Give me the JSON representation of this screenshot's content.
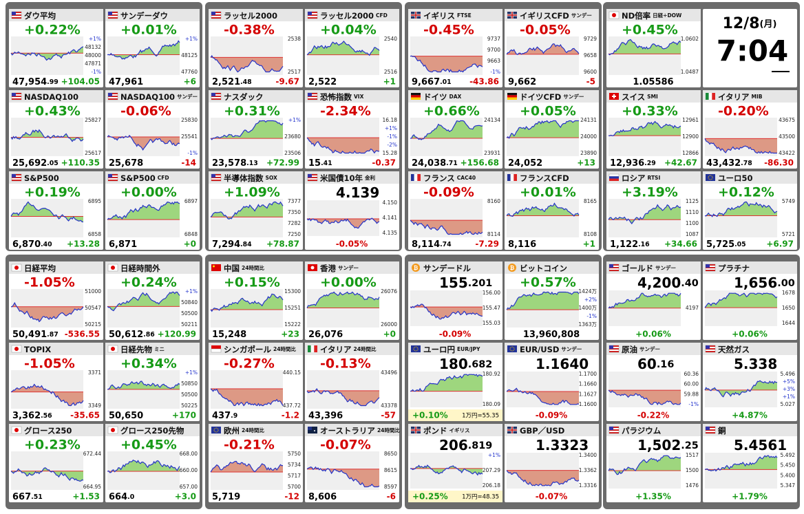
{
  "groups": [
    {
      "tiles": [
        {
          "name": "ダウ平均",
          "flag": "us",
          "style": "a",
          "pct": "+0.22%",
          "price": "47,954",
          "price_dec": ".99",
          "chg": "+104.05",
          "axis": [
            "+1%",
            "48132",
            "48000",
            "47871",
            "-1%"
          ]
        },
        {
          "name": "サンデーダウ",
          "flag": "us",
          "style": "a",
          "pct": "+0.01%",
          "price": "47,961",
          "chg": "+6",
          "axis": [
            "+1%",
            "48125",
            "47760"
          ]
        },
        {
          "name": "NASDAQ100",
          "flag": "us",
          "style": "a",
          "pct": "+0.43%",
          "price": "25,692",
          "price_dec": ".05",
          "chg": "+110.35",
          "axis": [
            "25827",
            "25617"
          ]
        },
        {
          "name": "NASDAQ100",
          "tag": "サンデー",
          "flag": "us",
          "style": "a",
          "pct": "-0.06%",
          "price": "25,678",
          "chg": "-14",
          "axis": [
            "25830",
            "25541",
            "-1%"
          ]
        },
        {
          "name": "S&P500",
          "flag": "us",
          "style": "a",
          "pct": "+0.19%",
          "price": "6,870",
          "price_dec": ".40",
          "chg": "+13.28",
          "axis": [
            "6895",
            "6858"
          ]
        },
        {
          "name": "S&P500",
          "tag": "CFD",
          "flag": "us",
          "style": "a",
          "pct": "+0.00%",
          "price": "6,871",
          "chg": "+0",
          "axis": [
            "6897",
            "6848"
          ]
        }
      ]
    },
    {
      "tiles": [
        {
          "name": "ラッセル2000",
          "flag": "us",
          "style": "a",
          "pct": "-0.38%",
          "price": "2,521",
          "price_dec": ".48",
          "chg": "-9.67",
          "axis": [
            "2538",
            "2517"
          ]
        },
        {
          "name": "ラッセル2000",
          "tag": "CFD",
          "flag": "us",
          "style": "a",
          "pct": "+0.04%",
          "price": "2,522",
          "chg": "+1",
          "axis": [
            "2540",
            "2516"
          ]
        },
        {
          "name": "ナスダック",
          "flag": "us",
          "style": "a",
          "pct": "+0.31%",
          "price": "23,578",
          "price_dec": ".13",
          "chg": "+72.99",
          "axis": [
            "+1%",
            "23680",
            "23506"
          ]
        },
        {
          "name": "恐怖指数",
          "tag": "VIX",
          "flag": "us",
          "style": "a",
          "pct": "-2.34%",
          "price": "15",
          "price_dec": ".41",
          "chg": "-0.37",
          "axis": [
            "16.18",
            "+1%",
            "-1%",
            "-2%",
            "15.28"
          ]
        },
        {
          "name": "半導体指数",
          "tag": "SOX",
          "flag": "us",
          "style": "a",
          "pct": "+1.09%",
          "price": "7,294",
          "price_dec": ".84",
          "chg": "+78.87",
          "axis": [
            "7377",
            "7350",
            "7282",
            "7250"
          ]
        },
        {
          "name": "米国債10年",
          "tag": "金利",
          "flag": "us",
          "style": "b",
          "price": "4.139",
          "pct": "-0.05%",
          "axis": [
            "4.150",
            "4.141",
            "4.135"
          ]
        }
      ]
    },
    {
      "tiles": [
        {
          "name": "イギリス",
          "tag": "FTSE",
          "flag": "gb",
          "style": "a",
          "pct": "-0.45%",
          "price": "9,667",
          "price_dec": ".01",
          "chg": "-43.86",
          "axis": [
            "9737",
            "9700",
            "9663",
            "-1%"
          ]
        },
        {
          "name": "イギリスCFD",
          "tag": "サンデー",
          "flag": "gb",
          "style": "a",
          "pct": "-0.05%",
          "price": "9,662",
          "chg": "-5",
          "axis": [
            "9729",
            "9658",
            "9600"
          ]
        },
        {
          "name": "ドイツ",
          "tag": "DAX",
          "flag": "de",
          "style": "a",
          "pct": "+0.66%",
          "price": "24,038",
          "price_dec": ".71",
          "chg": "+156.68",
          "axis": [
            "24134",
            "23931"
          ]
        },
        {
          "name": "ドイツCFD",
          "tag": "サンデー",
          "flag": "de",
          "style": "a",
          "pct": "+0.05%",
          "price": "24,052",
          "chg": "+13",
          "axis": [
            "24131",
            "24000",
            "23890"
          ]
        },
        {
          "name": "フランス",
          "tag": "CAC40",
          "flag": "fr",
          "style": "a",
          "pct": "-0.09%",
          "price": "8,114",
          "price_dec": ".74",
          "chg": "-7.29",
          "axis": [
            "8160",
            "8114"
          ]
        },
        {
          "name": "フランスCFD",
          "flag": "fr",
          "style": "a",
          "pct": "+0.01%",
          "price": "8,116",
          "chg": "+1",
          "axis": [
            "8165",
            "8108"
          ]
        }
      ]
    },
    {
      "tiles": [
        {
          "name": "ND倍率",
          "tag": "日経÷DOW",
          "flag": "jp",
          "style": "a",
          "pct": "+0.45%",
          "price": "1.05586",
          "axis": [
            "1.0602",
            "1.0487"
          ]
        },
        {
          "date": "12/8",
          "weekday": "(月)",
          "time": "7:04"
        },
        {
          "name": "スイス",
          "tag": "SMI",
          "flag": "ch",
          "style": "a",
          "pct": "+0.33%",
          "price": "12,936",
          "price_dec": ".29",
          "chg": "+42.67",
          "axis": [
            "12961",
            "12900",
            "12866"
          ]
        },
        {
          "name": "イタリア",
          "tag": "MIB",
          "flag": "it",
          "style": "a",
          "pct": "-0.20%",
          "price": "43,432",
          "price_dec": ".78",
          "chg": "-86.30",
          "axis": [
            "43675",
            "43500",
            "43422"
          ]
        },
        {
          "name": "ロシア",
          "tag": "RTSI",
          "flag": "ru",
          "style": "a",
          "pct": "+3.19%",
          "price": "1,122",
          "price_dec": ".16",
          "chg": "+34.66",
          "axis": [
            "1125",
            "1110",
            "1100",
            "1087"
          ]
        },
        {
          "name": "ユーロ50",
          "flag": "eu",
          "style": "a",
          "pct": "+0.12%",
          "price": "5,725",
          "price_dec": ".05",
          "chg": "+6.97",
          "axis": [
            "5749",
            "5721"
          ]
        }
      ]
    },
    {
      "tiles": [
        {
          "name": "日経平均",
          "flag": "jp",
          "style": "a",
          "pct": "-1.05%",
          "price": "50,491",
          "price_dec": ".87",
          "chg": "-536.55",
          "axis": [
            "51000",
            "50547",
            "50215"
          ]
        },
        {
          "name": "日経時間外",
          "flag": "jp",
          "style": "a",
          "pct": "+0.24%",
          "price": "50,612",
          "price_dec": ".86",
          "chg": "+120.99",
          "axis": [
            "+1%",
            "50840",
            "50500",
            "50211"
          ]
        },
        {
          "name": "TOPIX",
          "flag": "jp",
          "style": "a",
          "pct": "-1.05%",
          "price": "3,362",
          "price_dec": ".56",
          "chg": "-35.65",
          "axis": [
            "3371",
            "3349"
          ]
        },
        {
          "name": "日経先物",
          "tag": "ミニ",
          "flag": "jp",
          "style": "a",
          "pct": "+0.34%",
          "price": "50,650",
          "chg": "+170",
          "axis": [
            "+1%",
            "50850",
            "50500",
            "50225"
          ]
        },
        {
          "name": "グロース250",
          "flag": "jp",
          "style": "a",
          "pct": "+0.23%",
          "price": "667",
          "price_dec": ".51",
          "chg": "+1.53",
          "axis": [
            "672.44",
            "664.95"
          ]
        },
        {
          "name": "グロース250先物",
          "flag": "jp",
          "style": "a",
          "pct": "+0.45%",
          "price": "664",
          "price_dec": ".0",
          "chg": "+3.0",
          "axis": [
            "668.00",
            "660.00",
            "657.00"
          ]
        }
      ]
    },
    {
      "tiles": [
        {
          "name": "中国",
          "tag": "24時間比",
          "flag": "cn",
          "style": "a",
          "pct": "+0.15%",
          "price": "15,248",
          "chg": "+23",
          "axis": [
            "15300",
            "15251",
            "15222"
          ]
        },
        {
          "name": "香港",
          "tag": "サンデー",
          "flag": "hk",
          "style": "a",
          "pct": "+0.00%",
          "price": "26,076",
          "chg": "+0",
          "axis": [
            "26076",
            "26000"
          ]
        },
        {
          "name": "シンガポール",
          "tag": "24時間比",
          "flag": "sg",
          "style": "a",
          "pct": "-0.27%",
          "price": "437",
          "price_dec": ".9",
          "chg": "-1.2",
          "axis": [
            "440.15",
            "437.72"
          ]
        },
        {
          "name": "イタリア",
          "tag": "24時間比",
          "flag": "it",
          "style": "a",
          "pct": "-0.13%",
          "price": "43,396",
          "chg": "-57",
          "axis": [
            "43496",
            "43378"
          ]
        },
        {
          "name": "欧州",
          "tag": "24時間比",
          "flag": "eu",
          "style": "a",
          "pct": "-0.21%",
          "price": "5,719",
          "chg": "-12",
          "axis": [
            "5750",
            "5734",
            "5717",
            "5700"
          ]
        },
        {
          "name": "オーストラリア",
          "tag": "24時間比",
          "flag": "au",
          "style": "a",
          "pct": "-0.07%",
          "price": "8,606",
          "chg": "-6",
          "axis": [
            "8650",
            "8615",
            "8597"
          ]
        }
      ]
    },
    {
      "tiles": [
        {
          "name": "サンデードル",
          "flag": "coin",
          "style": "b",
          "price": "155",
          "price_dec": ".201",
          "pct": "-0.09%",
          "axis": [
            "156.00",
            "155.47",
            "155.03"
          ]
        },
        {
          "name": "ビットコイン",
          "flag": "coin",
          "style": "a",
          "pct": "+0.57%",
          "price": "13,960,808",
          "axis": [
            "1424万",
            "+2%",
            "1400万",
            "-1%",
            "1363万"
          ]
        },
        {
          "name": "ユーロ円",
          "tag": "EUR/JPY",
          "flag": "eu",
          "style": "b",
          "price": "180",
          "price_dec": ".682",
          "pct": "+0.10%",
          "note": "1万円=55.35",
          "axis": [
            "180.92",
            "180.09"
          ]
        },
        {
          "name": "EUR/USD",
          "tag": "サンデー",
          "flag": "eu",
          "style": "b",
          "price": "1.1640",
          "pct": "-0.09%",
          "axis": [
            "1.1700",
            "1.1660",
            "1.1627",
            "1.1600"
          ]
        },
        {
          "name": "ポンド",
          "tag": "イギリス",
          "flag": "gb",
          "style": "b",
          "price": "206",
          "price_dec": ".819",
          "pct": "+0.25%",
          "note": "1万円=48.35",
          "axis": [
            "+1%",
            "207.29",
            "206.18"
          ]
        },
        {
          "name": "GBP／USD",
          "flag": "gb",
          "style": "b",
          "price": "1.3323",
          "pct": "-0.07%",
          "axis": [
            "1.3400",
            "1.3362",
            "1.3316"
          ]
        }
      ]
    },
    {
      "tiles": [
        {
          "name": "ゴールド",
          "tag": "サンデー",
          "flag": "us",
          "style": "b",
          "price": "4,200",
          "price_dec": ".40",
          "pct": "+0.06%",
          "axis": [
            "4197"
          ]
        },
        {
          "name": "プラチナ",
          "flag": "us",
          "style": "b",
          "price": "1,656",
          "price_dec": ".00",
          "pct": "+0.06%",
          "axis": [
            "1678",
            "1650",
            "1644"
          ]
        },
        {
          "name": "原油",
          "tag": "サンデー",
          "flag": "us",
          "style": "b",
          "price": "60",
          "price_dec": ".16",
          "pct": "-0.22%",
          "axis": [
            "60.36",
            "60.00",
            "59.88",
            "-1%"
          ]
        },
        {
          "name": "天然ガス",
          "flag": "us",
          "style": "b",
          "price": "5.338",
          "pct": "+4.87%",
          "axis": [
            "5.496",
            "+5%",
            "+3%",
            "+1%",
            "5.027"
          ]
        },
        {
          "name": "パラジウム",
          "flag": "us",
          "style": "b",
          "price": "1,502",
          "price_dec": ".25",
          "pct": "+1.35%",
          "axis": [
            "1517",
            "1500",
            "1476"
          ]
        },
        {
          "name": "銅",
          "flag": "us",
          "style": "b",
          "price": "5.4561",
          "pct": "+1.79%",
          "axis": [
            "5.492",
            "5.450",
            "5.400",
            "5.347"
          ]
        }
      ]
    }
  ]
}
